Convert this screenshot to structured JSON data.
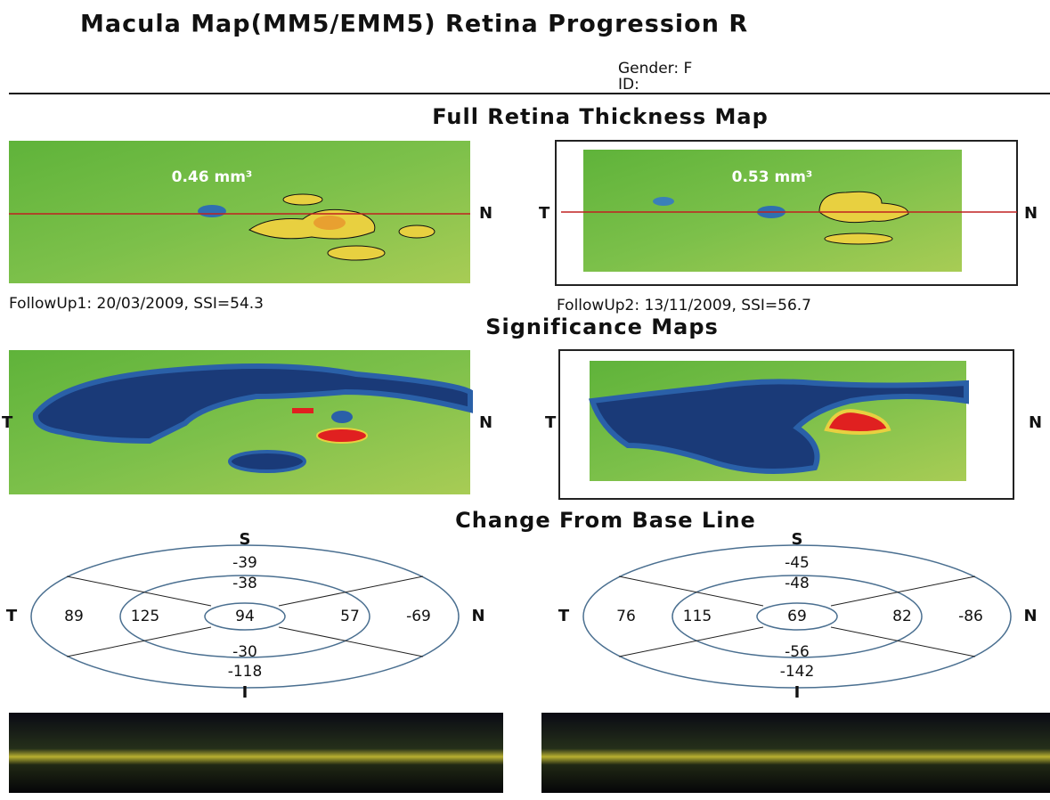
{
  "header": {
    "title": "Macula Map(MM5/EMM5) Retina Progression R",
    "gender": "Gender: F",
    "id": "ID:"
  },
  "orientation": {
    "s": "S",
    "i": "I",
    "t": "T",
    "n": "N"
  },
  "thickness": {
    "title": "Full Retina Thickness Map",
    "maps": [
      {
        "volume": "0.46 mm³",
        "caption": "FollowUp1: 20/03/2009, SSI=54.3"
      },
      {
        "volume": "0.53 mm³",
        "caption": "FollowUp2: 13/11/2009, SSI=56.7"
      }
    ]
  },
  "significance": {
    "title": "Significance Maps"
  },
  "change": {
    "title": "Change From Base Line",
    "grids": [
      {
        "outer_s": -39,
        "inner_s": -38,
        "center": 94,
        "outer_t": 89,
        "inner_t": 125,
        "inner_n": 57,
        "outer_n": -69,
        "inner_i": -30,
        "outer_i": -118
      },
      {
        "outer_s": -45,
        "inner_s": -48,
        "center": 69,
        "outer_t": 76,
        "inner_t": 115,
        "inner_n": 82,
        "outer_n": -86,
        "inner_i": -56,
        "outer_i": -142
      }
    ]
  }
}
